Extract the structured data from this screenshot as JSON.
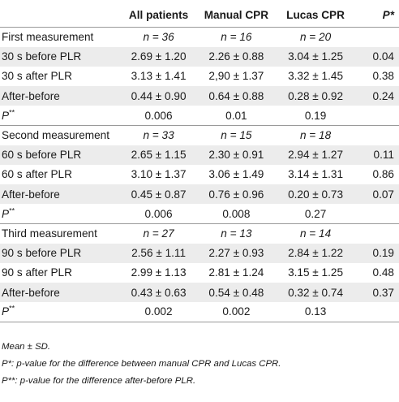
{
  "headers": {
    "label": "",
    "all": "All patients",
    "manual": "Manual CPR",
    "lucas": "Lucas CPR",
    "p": "P*"
  },
  "sections": [
    {
      "title": "First measurement",
      "n_all": "n = 36",
      "n_manual": "n = 16",
      "n_lucas": "n = 20",
      "rows": [
        {
          "label": "30 s before PLR",
          "all": "2.69 ± 1.20",
          "manual": "2.26 ± 0.88",
          "lucas": "3.04 ± 1.25",
          "p": "0.04"
        },
        {
          "label": "30 s after PLR",
          "all": "3.13 ± 1.41",
          "manual": "2,90 ± 1.37",
          "lucas": "3.32 ± 1.45",
          "p": "0.38"
        },
        {
          "label": "After-before",
          "all": "0.44 ± 0.90",
          "manual": "0.64 ± 0.88",
          "lucas": "0.28 ± 0.92",
          "p": "0.24"
        }
      ],
      "p_label": "P",
      "p_sup": "**",
      "p_all": "0.006",
      "p_manual": "0.01",
      "p_lucas": "0.19"
    },
    {
      "title": "Second measurement",
      "n_all": "n = 33",
      "n_manual": "n = 15",
      "n_lucas": "n = 18",
      "rows": [
        {
          "label": "60 s before PLR",
          "all": "2.65 ± 1.15",
          "manual": "2.30 ± 0.91",
          "lucas": "2.94 ± 1.27",
          "p": "0.11"
        },
        {
          "label": "60 s after PLR",
          "all": "3.10 ± 1.37",
          "manual": "3.06 ± 1.49",
          "lucas": "3.14 ± 1.31",
          "p": "0.86"
        },
        {
          "label": "After-before",
          "all": "0.45 ± 0.87",
          "manual": "0.76 ± 0.96",
          "lucas": "0.20 ± 0.73",
          "p": "0.07"
        }
      ],
      "p_label": "P",
      "p_sup": "**",
      "p_all": "0.006",
      "p_manual": "0.008",
      "p_lucas": "0.27"
    },
    {
      "title": "Third measurement",
      "n_all": "n = 27",
      "n_manual": "n = 13",
      "n_lucas": "n = 14",
      "rows": [
        {
          "label": "90 s before PLR",
          "all": "2.56 ± 1.11",
          "manual": "2.27 ± 0.93",
          "lucas": "2.84 ± 1.22",
          "p": "0.19"
        },
        {
          "label": "90 s after PLR",
          "all": "2.99 ± 1.13",
          "manual": "2.81 ± 1.24",
          "lucas": "3.15 ± 1.25",
          "p": "0.48"
        },
        {
          "label": "After-before",
          "all": "0.43 ± 0.63",
          "manual": "0.54 ± 0.48",
          "lucas": "0.32 ± 0.74",
          "p": "0.37"
        }
      ],
      "p_label": "P",
      "p_sup": "**",
      "p_all": "0.002",
      "p_manual": "0.002",
      "p_lucas": "0.13"
    }
  ],
  "notes": [
    "Mean ± SD.",
    "P*: p-value for the difference between manual CPR and Lucas CPR.",
    "P**: p-value for the difference after-before PLR."
  ]
}
